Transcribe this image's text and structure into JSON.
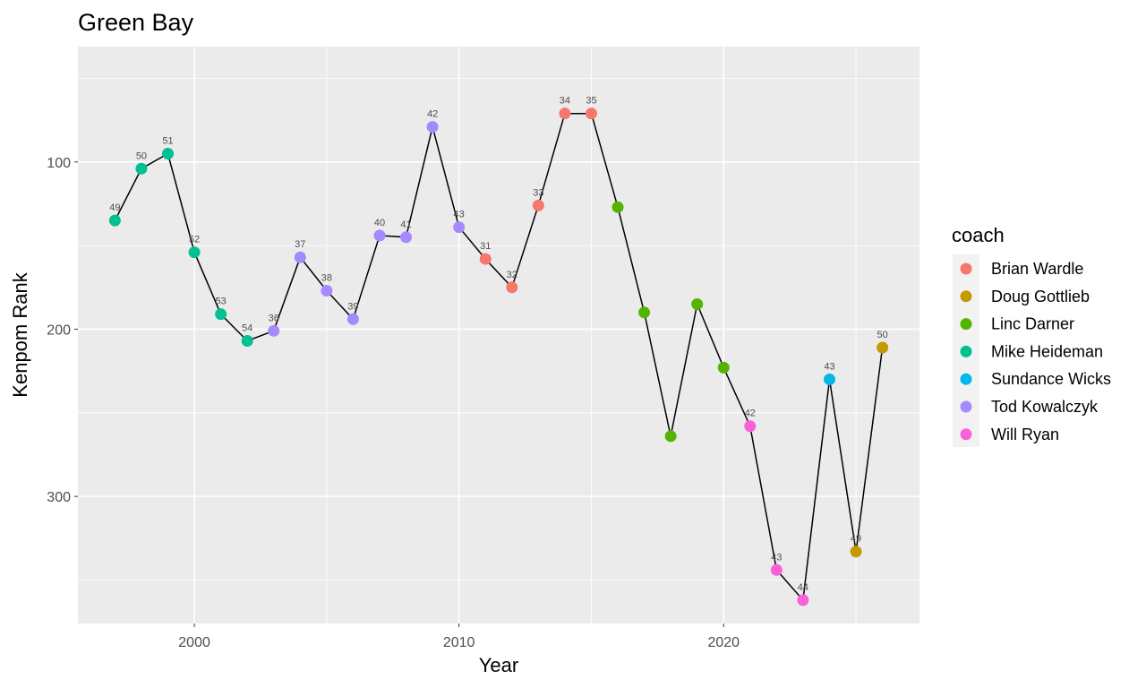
{
  "chart_data": {
    "type": "line",
    "title": "Green Bay",
    "xlabel": "Year",
    "ylabel": "Kenpom Rank",
    "x_ticks": [
      2000,
      2010,
      2020
    ],
    "y_ticks": [
      100,
      200,
      300
    ],
    "xlim": [
      1995.6,
      2027.4
    ],
    "ylim": [
      376,
      31
    ],
    "y_reversed": true,
    "grid": true,
    "legend_title": "coach",
    "legend_position": "right",
    "coaches": [
      {
        "name": "Brian Wardle",
        "color": "#F8766D"
      },
      {
        "name": "Doug Gottlieb",
        "color": "#C49A00"
      },
      {
        "name": "Linc Darner",
        "color": "#53B400"
      },
      {
        "name": "Mike Heideman",
        "color": "#00C094"
      },
      {
        "name": "Sundance Wicks",
        "color": "#00B6EB"
      },
      {
        "name": "Tod Kowalczyk",
        "color": "#A58AFF"
      },
      {
        "name": "Will Ryan",
        "color": "#FB61D7"
      }
    ],
    "points": [
      {
        "year": 1997,
        "rank": 135,
        "coach": "Mike Heideman",
        "label": "49"
      },
      {
        "year": 1998,
        "rank": 104,
        "coach": "Mike Heideman",
        "label": "50"
      },
      {
        "year": 1999,
        "rank": 95,
        "coach": "Mike Heideman",
        "label": "51"
      },
      {
        "year": 2000,
        "rank": 154,
        "coach": "Mike Heideman",
        "label": "52"
      },
      {
        "year": 2001,
        "rank": 191,
        "coach": "Mike Heideman",
        "label": "53"
      },
      {
        "year": 2002,
        "rank": 207,
        "coach": "Mike Heideman",
        "label": "54"
      },
      {
        "year": 2003,
        "rank": 201,
        "coach": "Tod Kowalczyk",
        "label": "36"
      },
      {
        "year": 2004,
        "rank": 157,
        "coach": "Tod Kowalczyk",
        "label": "37"
      },
      {
        "year": 2005,
        "rank": 177,
        "coach": "Tod Kowalczyk",
        "label": "38"
      },
      {
        "year": 2006,
        "rank": 194,
        "coach": "Tod Kowalczyk",
        "label": "39"
      },
      {
        "year": 2007,
        "rank": 144,
        "coach": "Tod Kowalczyk",
        "label": "40"
      },
      {
        "year": 2008,
        "rank": 145,
        "coach": "Tod Kowalczyk",
        "label": "41"
      },
      {
        "year": 2009,
        "rank": 79,
        "coach": "Tod Kowalczyk",
        "label": "42"
      },
      {
        "year": 2010,
        "rank": 139,
        "coach": "Tod Kowalczyk",
        "label": "43"
      },
      {
        "year": 2011,
        "rank": 158,
        "coach": "Brian Wardle",
        "label": "31"
      },
      {
        "year": 2012,
        "rank": 175,
        "coach": "Brian Wardle",
        "label": "32"
      },
      {
        "year": 2013,
        "rank": 126,
        "coach": "Brian Wardle",
        "label": "33"
      },
      {
        "year": 2014,
        "rank": 71,
        "coach": "Brian Wardle",
        "label": "34"
      },
      {
        "year": 2015,
        "rank": 71,
        "coach": "Brian Wardle",
        "label": "35"
      },
      {
        "year": 2016,
        "rank": 127,
        "coach": "Linc Darner",
        "label": ""
      },
      {
        "year": 2017,
        "rank": 190,
        "coach": "Linc Darner",
        "label": ""
      },
      {
        "year": 2018,
        "rank": 264,
        "coach": "Linc Darner",
        "label": ""
      },
      {
        "year": 2019,
        "rank": 185,
        "coach": "Linc Darner",
        "label": ""
      },
      {
        "year": 2020,
        "rank": 223,
        "coach": "Linc Darner",
        "label": ""
      },
      {
        "year": 2021,
        "rank": 258,
        "coach": "Will Ryan",
        "label": "42"
      },
      {
        "year": 2022,
        "rank": 344,
        "coach": "Will Ryan",
        "label": "43"
      },
      {
        "year": 2023,
        "rank": 362,
        "coach": "Will Ryan",
        "label": "44"
      },
      {
        "year": 2024,
        "rank": 230,
        "coach": "Sundance Wicks",
        "label": "43"
      },
      {
        "year": 2025,
        "rank": 333,
        "coach": "Doug Gottlieb",
        "label": "49"
      },
      {
        "year": 2026,
        "rank": 211,
        "coach": "Doug Gottlieb",
        "label": "50"
      }
    ]
  }
}
